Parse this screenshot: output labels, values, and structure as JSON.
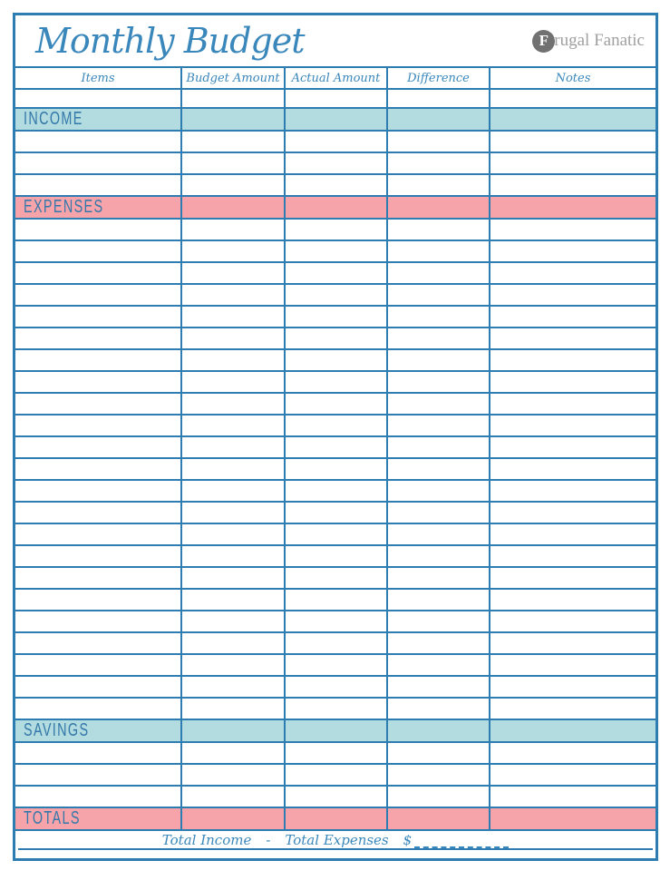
{
  "header": {
    "title": "Monthly Budget",
    "logo": {
      "full_name": "Frugal Fanatic",
      "initial": "F",
      "rest": "rugal Fanatic"
    }
  },
  "table": {
    "columns": [
      {
        "key": "items",
        "label": "Items"
      },
      {
        "key": "budget",
        "label": "Budget Amount"
      },
      {
        "key": "actual",
        "label": "Actual Amount"
      },
      {
        "key": "diff",
        "label": "Difference"
      },
      {
        "key": "notes",
        "label": "Notes"
      }
    ],
    "layout": [
      {
        "type": "blank",
        "count": 1
      },
      {
        "type": "section",
        "label": "INCOME",
        "band": "teal"
      },
      {
        "type": "blank",
        "count": 3
      },
      {
        "type": "section",
        "label": "EXPENSES",
        "band": "pink"
      },
      {
        "type": "blank",
        "count": 23
      },
      {
        "type": "section",
        "label": "SAVINGS",
        "band": "teal"
      },
      {
        "type": "blank",
        "count": 3
      },
      {
        "type": "section",
        "label": "TOTALS",
        "band": "pink"
      }
    ]
  },
  "footer": {
    "income_label": "Total Income",
    "operator": "-",
    "expenses_label": "Total Expenses",
    "currency": "$"
  },
  "colors": {
    "border_blue": "#2d7db2",
    "script_blue": "#3a87bb",
    "label_blue": "#3478a9",
    "teal_band": "#b2dce0",
    "pink_band": "#f6a4aa",
    "logo_gray": "#a0a0a0",
    "logo_circle_gray": "#717171"
  }
}
